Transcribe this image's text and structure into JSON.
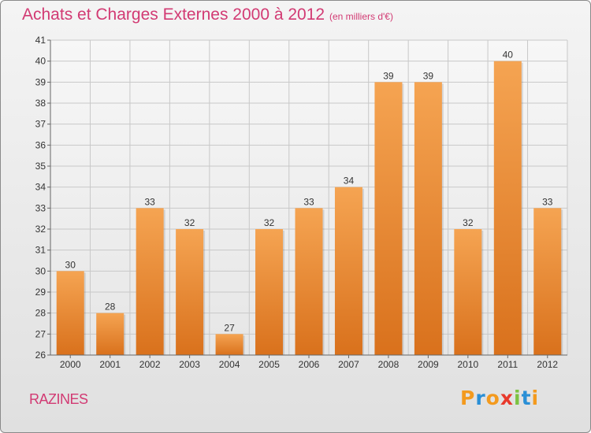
{
  "header": {
    "title": "Achats et Charges Externes 2000 à 2012",
    "subtitle": "(en milliers d'€)"
  },
  "footer": {
    "commune": "RAZINES",
    "logo": {
      "letters": [
        "P",
        "r",
        "o",
        "x",
        "i",
        "t",
        "i"
      ],
      "colors": [
        "#f39a1e",
        "#2a8fd6",
        "#f39a1e",
        "#e8392b",
        "#7cc242",
        "#2a8fd6",
        "#f39a1e"
      ]
    }
  },
  "colors": {
    "bar_top": "#f5a452",
    "bar_bottom": "#d9711c",
    "title": "#d23a73",
    "grid": "#c8c8c8",
    "axis_text": "#333333"
  },
  "chart_data": {
    "type": "bar",
    "categories": [
      "2000",
      "2001",
      "2002",
      "2003",
      "2004",
      "2005",
      "2006",
      "2007",
      "2008",
      "2009",
      "2010",
      "2011",
      "2012"
    ],
    "values": [
      30,
      28,
      33,
      32,
      27,
      32,
      33,
      34,
      39,
      39,
      32,
      40,
      33
    ],
    "data_labels": [
      "30",
      "28",
      "33",
      "32",
      "27",
      "32",
      "33",
      "34",
      "39",
      "39",
      "32",
      "40",
      "33"
    ],
    "y_ticks": [
      "26",
      "27",
      "28",
      "29",
      "30",
      "31",
      "32",
      "33",
      "34",
      "35",
      "36",
      "37",
      "38",
      "39",
      "40",
      "41"
    ],
    "ylim": [
      26,
      41
    ],
    "grid": true,
    "legend": "none"
  }
}
